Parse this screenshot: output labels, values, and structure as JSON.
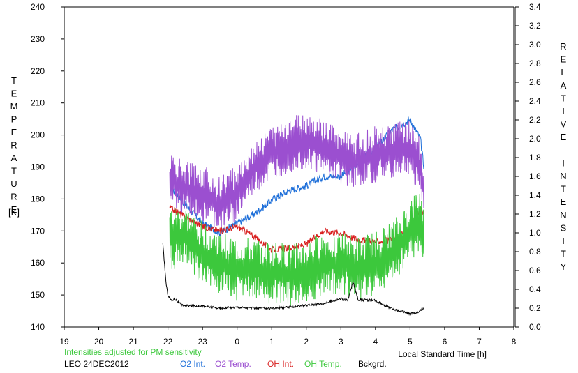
{
  "chart_data": {
    "type": "line",
    "left_axis": {
      "label": "TEMPERATURE",
      "unit": "[K]",
      "range": [
        140,
        240
      ],
      "ticks": [
        140,
        150,
        160,
        170,
        180,
        190,
        200,
        210,
        220,
        230,
        240
      ]
    },
    "right_axis": {
      "label": "RELATIVE INTENSITY",
      "range": [
        0.0,
        3.4
      ],
      "ticks": [
        "0.0",
        "0.2",
        "0.4",
        "0.6",
        "0.8",
        "1.0",
        "1.2",
        "1.4",
        "1.6",
        "1.8",
        "2.0",
        "2.2",
        "2.4",
        "2.6",
        "2.8",
        "3.0",
        "3.2",
        "3.4"
      ]
    },
    "x_axis": {
      "label": "Local Standard Time [h]",
      "range": [
        19,
        32
      ],
      "tick_labels": [
        "19",
        "20",
        "21",
        "22",
        "23",
        "0",
        "1",
        "2",
        "3",
        "4",
        "5",
        "6",
        "7",
        "8"
      ]
    },
    "note": "Intensities adjusted for PM sensitivity",
    "station": "LEO 24DEC2012",
    "series": [
      {
        "name": "O2 Int.",
        "color": "#1e6fd9",
        "axis": "right",
        "x": [
          22.05,
          22.5,
          23.0,
          23.5,
          24.0,
          24.5,
          25.0,
          25.5,
          26.0,
          26.5,
          27.0,
          27.5,
          28.0,
          28.5,
          29.0,
          29.3,
          29.4
        ],
        "values": [
          1.5,
          1.3,
          1.1,
          1.0,
          1.1,
          1.2,
          1.35,
          1.45,
          1.5,
          1.6,
          1.6,
          1.75,
          1.9,
          2.1,
          2.2,
          2.0,
          1.7
        ]
      },
      {
        "name": "O2 Temp.",
        "color": "#9b4fd0",
        "axis": "left",
        "x": [
          22.05,
          22.5,
          23.0,
          23.5,
          24.0,
          24.5,
          25.0,
          25.5,
          26.0,
          26.5,
          27.0,
          27.5,
          28.0,
          28.5,
          29.0,
          29.3,
          29.4
        ],
        "values": [
          186,
          183,
          182,
          178,
          182,
          190,
          194,
          197,
          198,
          196,
          193,
          192,
          194,
          195,
          196,
          190,
          184
        ]
      },
      {
        "name": "OH Int.",
        "color": "#d81e1e",
        "axis": "right",
        "x": [
          22.05,
          22.5,
          23.0,
          23.5,
          24.0,
          24.5,
          25.0,
          25.5,
          26.0,
          26.5,
          27.0,
          27.5,
          28.0,
          28.5,
          29.0,
          29.3,
          29.4
        ],
        "values": [
          1.27,
          1.17,
          1.07,
          1.02,
          1.07,
          0.96,
          0.82,
          0.84,
          0.88,
          1.02,
          1.0,
          0.93,
          0.91,
          0.92,
          1.05,
          1.25,
          1.2
        ]
      },
      {
        "name": "OH Temp.",
        "color": "#3cc83c",
        "axis": "left",
        "x": [
          22.05,
          22.5,
          23.0,
          23.5,
          24.0,
          24.5,
          25.0,
          25.5,
          26.0,
          26.5,
          27.0,
          27.5,
          28.0,
          28.5,
          29.0,
          29.3,
          29.4
        ],
        "values": [
          168,
          168,
          163,
          160,
          158,
          158,
          157,
          156,
          157,
          160,
          160,
          158,
          160,
          163,
          170,
          174,
          167
        ]
      },
      {
        "name": "Bckgrd.",
        "color": "#000000",
        "axis": "right",
        "x": [
          21.85,
          21.95,
          22.0,
          22.1,
          22.2,
          22.4,
          23.0,
          23.5,
          24.0,
          24.5,
          25.0,
          25.5,
          26.0,
          26.5,
          27.0,
          27.2,
          27.35,
          27.5,
          28.0,
          28.5,
          29.0,
          29.2,
          29.4
        ],
        "values": [
          0.89,
          0.45,
          0.34,
          0.28,
          0.3,
          0.23,
          0.22,
          0.2,
          0.21,
          0.2,
          0.2,
          0.21,
          0.23,
          0.25,
          0.3,
          0.28,
          0.48,
          0.29,
          0.28,
          0.19,
          0.14,
          0.15,
          0.2
        ]
      }
    ]
  }
}
